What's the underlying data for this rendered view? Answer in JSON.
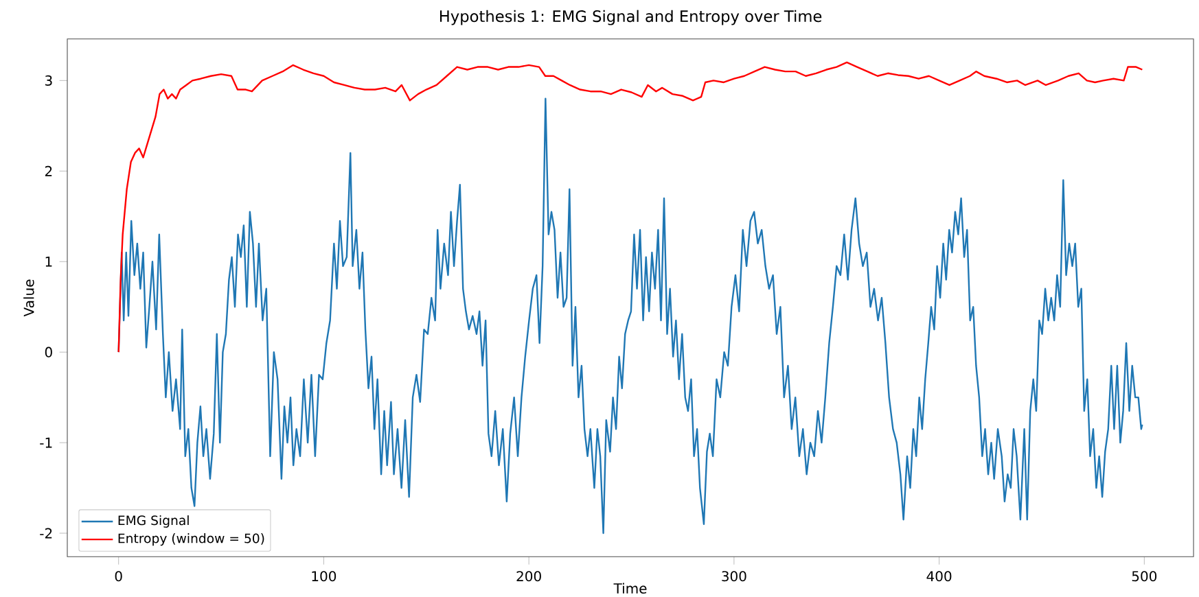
{
  "chart_data": {
    "type": "line",
    "title": "Hypothesis 1: EMG Signal and Entropy over Time",
    "xlabel": "Time",
    "ylabel": "Value",
    "xlim": [
      -25,
      524
    ],
    "ylim": [
      -2.26,
      3.46
    ],
    "xticks": [
      0,
      100,
      200,
      300,
      400,
      500
    ],
    "yticks": [
      -2,
      -1,
      0,
      1,
      2,
      3
    ],
    "grid": false,
    "legend": "bottom left",
    "series": [
      {
        "name": "EMG Signal",
        "color": "#1f77b4",
        "x": [
          0,
          1.5,
          2.5,
          3.7,
          4.8,
          6.2,
          7.7,
          9.1,
          10.6,
          12,
          13.5,
          15,
          16.5,
          18.3,
          19.8,
          21.6,
          23,
          24.5,
          26.3,
          28,
          30,
          31,
          32.5,
          34,
          35.5,
          37,
          38.4,
          39.9,
          41.3,
          42.8,
          44.6,
          46.4,
          47.9,
          49.4,
          50.8,
          52.3,
          53.8,
          55.2,
          56.7,
          58.2,
          59.6,
          61,
          62.5,
          64,
          65.5,
          67,
          68.4,
          70.2,
          72,
          73.9,
          75.7,
          77.5,
          79.4,
          80.8,
          82.3,
          83.8,
          85.2,
          86.7,
          88.5,
          90.3,
          92.2,
          94,
          95.8,
          97.7,
          99.5,
          101.3,
          103.1,
          105,
          106.4,
          107.9,
          109.4,
          111.2,
          113,
          114.1,
          115.9,
          117.4,
          118.9,
          120.3,
          121.8,
          123.3,
          124.7,
          126.2,
          128,
          129.5,
          130.9,
          132.8,
          134.2,
          136,
          137.9,
          139.7,
          141.6,
          143.4,
          145.2,
          147,
          148.9,
          150.7,
          152.5,
          154.3,
          155.5,
          156.9,
          158.7,
          160.6,
          162,
          163.5,
          165,
          166.4,
          167.9,
          169.3,
          170.8,
          172.6,
          174.5,
          175.9,
          177.4,
          178.9,
          180.3,
          181.8,
          183.6,
          185.4,
          187.3,
          189.2,
          190.9,
          192.8,
          194.6,
          196.4,
          198.2,
          200.1,
          201.9,
          203.7,
          205.2,
          206.7,
          208.1,
          209.6,
          211,
          212.5,
          214,
          215.4,
          216.9,
          218.4,
          219.8,
          221.3,
          222.7,
          224.2,
          225.7,
          227.1,
          228.6,
          230,
          231.9,
          233.4,
          234.8,
          236.3,
          237.7,
          239.6,
          241,
          242.5,
          244,
          245.4,
          246.9,
          248.4,
          249.8,
          251.3,
          252.7,
          254.2,
          255.7,
          257.1,
          258.6,
          260,
          261.5,
          263,
          264.4,
          265.9,
          267.4,
          268.8,
          270.3,
          271.7,
          273.2,
          274.7,
          276.2,
          277.6,
          279.1,
          280.5,
          282,
          283.4,
          285.3,
          286.8,
          288.2,
          289.7,
          291.5,
          293.3,
          295.2,
          297,
          298.8,
          300.7,
          302.5,
          304.3,
          306.1,
          308,
          309.8,
          311.6,
          313.5,
          315.3,
          317.1,
          319,
          320.8,
          322.6,
          324.4,
          326.3,
          328.1,
          329.9,
          331.8,
          333.6,
          335.4,
          337.2,
          339.1,
          340.9,
          342.7,
          344.5,
          346.4,
          348.2,
          350,
          351.9,
          353.7,
          355.5,
          357.3,
          359.2,
          361,
          362.8,
          364.7,
          366.5,
          368.3,
          370.2,
          372,
          373.8,
          375.6,
          377.5,
          379.3,
          381.1,
          382.6,
          384.4,
          385.9,
          387.4,
          388.8,
          390.3,
          391.7,
          393.2,
          394.7,
          396.1,
          397.6,
          399,
          400.5,
          402,
          403.4,
          404.9,
          406.3,
          407.8,
          409.3,
          410.7,
          412.2,
          413.6,
          415.1,
          416.6,
          418,
          419.5,
          421,
          422.4,
          423.9,
          425.4,
          426.8,
          428.6,
          430.5,
          431.9,
          433.4,
          434.9,
          436.3,
          437.8,
          439.6,
          441.5,
          442.9,
          444.4,
          445.9,
          447.3,
          448.8,
          450.2,
          451.7,
          453.2,
          454.6,
          456.1,
          457.5,
          459,
          460.5,
          461.9,
          463.4,
          464.9,
          466.3,
          467.8,
          469.3,
          470.7,
          472.2,
          473.6,
          475.1,
          476.6,
          478,
          479.5,
          480.9,
          482.4,
          483.9,
          485.3,
          486.8,
          488.3,
          489.7,
          491.2,
          492.7,
          494.1,
          495.6,
          497.1,
          498.5,
          499
        ],
        "values": [
          0,
          1.1,
          0.35,
          1.1,
          0.4,
          1.45,
          0.85,
          1.2,
          0.7,
          1.1,
          0.05,
          0.5,
          1.0,
          0.25,
          1.3,
          0.2,
          -0.5,
          0,
          -0.65,
          -0.3,
          -0.85,
          0.25,
          -1.15,
          -0.85,
          -1.5,
          -1.7,
          -1.0,
          -0.6,
          -1.15,
          -0.85,
          -1.4,
          -0.9,
          0.2,
          -1.0,
          0,
          0.2,
          0.8,
          1.05,
          0.5,
          1.3,
          1.05,
          1.4,
          0.5,
          1.55,
          1.2,
          0.5,
          1.2,
          0.35,
          0.7,
          -1.15,
          0,
          -0.3,
          -1.4,
          -0.6,
          -1.0,
          -0.5,
          -1.25,
          -0.85,
          -1.15,
          -0.3,
          -1.0,
          -0.25,
          -1.15,
          -0.25,
          -0.3,
          0.1,
          0.35,
          1.2,
          0.7,
          1.45,
          0.95,
          1.05,
          2.2,
          0.95,
          1.35,
          0.7,
          1.1,
          0.25,
          -0.4,
          -0.05,
          -0.85,
          -0.3,
          -1.35,
          -0.65,
          -1.25,
          -0.55,
          -1.35,
          -0.85,
          -1.5,
          -0.75,
          -1.6,
          -0.5,
          -0.25,
          -0.55,
          0.25,
          0.2,
          0.6,
          0.35,
          1.35,
          0.7,
          1.2,
          0.85,
          1.55,
          0.95,
          1.45,
          1.85,
          0.7,
          0.45,
          0.25,
          0.4,
          0.2,
          0.45,
          -0.15,
          0.35,
          -0.9,
          -1.15,
          -0.65,
          -1.25,
          -0.85,
          -1.65,
          -0.9,
          -0.5,
          -1.15,
          -0.5,
          -0.05,
          0.35,
          0.7,
          0.85,
          0.1,
          0.95,
          2.8,
          1.3,
          1.55,
          1.35,
          0.6,
          1.1,
          0.5,
          0.6,
          1.8,
          -0.15,
          0.5,
          -0.5,
          -0.15,
          -0.85,
          -1.15,
          -0.85,
          -1.5,
          -0.85,
          -1.15,
          -2.0,
          -0.75,
          -1.1,
          -0.5,
          -0.85,
          -0.05,
          -0.4,
          0.2,
          0.35,
          0.45,
          1.3,
          0.7,
          1.35,
          0.35,
          1.05,
          0.45,
          1.1,
          0.7,
          1.35,
          0.35,
          1.7,
          0.2,
          0.7,
          -0.05,
          0.35,
          -0.3,
          0.2,
          -0.5,
          -0.65,
          -0.3,
          -1.15,
          -0.85,
          -1.5,
          -1.9,
          -1.1,
          -0.9,
          -1.15,
          -0.3,
          -0.5,
          0,
          -0.15,
          0.5,
          0.85,
          0.45,
          1.35,
          0.95,
          1.45,
          1.55,
          1.2,
          1.35,
          0.95,
          0.7,
          0.85,
          0.2,
          0.5,
          -0.5,
          -0.15,
          -0.85,
          -0.5,
          -1.15,
          -0.85,
          -1.35,
          -1.0,
          -1.15,
          -0.65,
          -1.0,
          -0.5,
          0.1,
          0.5,
          0.95,
          0.85,
          1.3,
          0.8,
          1.35,
          1.7,
          1.2,
          0.95,
          1.1,
          0.5,
          0.7,
          0.35,
          0.6,
          0.1,
          -0.5,
          -0.85,
          -1.0,
          -1.35,
          -1.85,
          -1.15,
          -1.5,
          -0.85,
          -1.15,
          -0.5,
          -0.85,
          -0.3,
          0.1,
          0.5,
          0.25,
          0.95,
          0.6,
          1.2,
          0.8,
          1.35,
          1.1,
          1.55,
          1.3,
          1.7,
          1.05,
          1.35,
          0.35,
          0.5,
          -0.15,
          -0.5,
          -1.15,
          -0.85,
          -1.35,
          -1.0,
          -1.4,
          -0.85,
          -1.15,
          -1.65,
          -1.35,
          -1.5,
          -0.85,
          -1.15,
          -1.85,
          -0.85,
          -1.85,
          -0.65,
          -0.3,
          -0.65,
          0.35,
          0.2,
          0.7,
          0.35,
          0.6,
          0.35,
          0.85,
          0.5,
          1.9,
          0.85,
          1.2,
          0.95,
          1.2,
          0.5,
          0.7,
          -0.65,
          -0.3,
          -1.15,
          -0.85,
          -1.5,
          -1.15,
          -1.6,
          -1.1,
          -0.85,
          -0.15,
          -0.85,
          -0.15,
          -1.0,
          -0.65,
          0.1,
          -0.65,
          -0.15,
          -0.5,
          -0.5,
          -0.85,
          -0.8
        ]
      },
      {
        "name": "Entropy (window = 50)",
        "color": "#ff0000",
        "x": [
          0,
          1,
          2,
          4,
          6,
          8,
          10,
          12,
          14,
          16,
          18,
          20,
          22,
          24,
          26,
          28,
          30,
          33,
          36,
          40,
          45,
          50,
          55,
          58,
          62,
          65,
          70,
          75,
          80,
          85,
          90,
          95,
          100,
          105,
          110,
          115,
          120,
          125,
          130,
          135,
          138,
          142,
          146,
          150,
          155,
          160,
          165,
          170,
          175,
          180,
          185,
          190,
          195,
          200,
          205,
          208,
          212,
          216,
          220,
          225,
          230,
          235,
          240,
          245,
          250,
          255,
          258,
          262,
          265,
          270,
          275,
          280,
          284,
          286,
          290,
          295,
          300,
          305,
          310,
          315,
          320,
          325,
          330,
          335,
          340,
          345,
          350,
          355,
          360,
          365,
          370,
          375,
          380,
          385,
          390,
          395,
          400,
          405,
          410,
          415,
          418,
          422,
          428,
          433,
          438,
          442,
          448,
          452,
          458,
          463,
          468,
          472,
          476,
          480,
          485,
          490,
          492,
          496,
          499
        ],
        "values": [
          0,
          0.8,
          1.3,
          1.8,
          2.1,
          2.2,
          2.25,
          2.15,
          2.3,
          2.45,
          2.6,
          2.85,
          2.9,
          2.8,
          2.85,
          2.8,
          2.9,
          2.95,
          3.0,
          3.02,
          3.05,
          3.07,
          3.05,
          2.9,
          2.9,
          2.88,
          3.0,
          3.05,
          3.1,
          3.17,
          3.12,
          3.08,
          3.05,
          2.98,
          2.95,
          2.92,
          2.9,
          2.9,
          2.92,
          2.88,
          2.95,
          2.78,
          2.85,
          2.9,
          2.95,
          3.05,
          3.15,
          3.12,
          3.15,
          3.15,
          3.12,
          3.15,
          3.15,
          3.17,
          3.15,
          3.05,
          3.05,
          3.0,
          2.95,
          2.9,
          2.88,
          2.88,
          2.85,
          2.9,
          2.87,
          2.82,
          2.95,
          2.88,
          2.92,
          2.85,
          2.83,
          2.78,
          2.82,
          2.98,
          3.0,
          2.98,
          3.02,
          3.05,
          3.1,
          3.15,
          3.12,
          3.1,
          3.1,
          3.05,
          3.08,
          3.12,
          3.15,
          3.2,
          3.15,
          3.1,
          3.05,
          3.08,
          3.06,
          3.05,
          3.02,
          3.05,
          3.0,
          2.95,
          3.0,
          3.05,
          3.1,
          3.05,
          3.02,
          2.98,
          3.0,
          2.95,
          3.0,
          2.95,
          3.0,
          3.05,
          3.08,
          3.0,
          2.98,
          3.0,
          3.02,
          3.0,
          3.15,
          3.15,
          3.12
        ]
      }
    ]
  }
}
